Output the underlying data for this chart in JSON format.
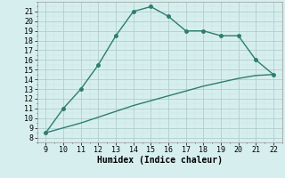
{
  "x_main": [
    9,
    10,
    11,
    12,
    13,
    14,
    15,
    16,
    17,
    18,
    19,
    20,
    21,
    22
  ],
  "y_main": [
    8.5,
    11,
    13,
    15.5,
    18.5,
    21,
    21.5,
    20.5,
    19,
    19,
    18.5,
    18.5,
    16,
    14.5
  ],
  "x_lower": [
    9,
    10,
    11,
    12,
    13,
    14,
    15,
    16,
    17,
    18,
    19,
    20,
    21,
    22
  ],
  "y_lower": [
    8.5,
    9.0,
    9.5,
    10.1,
    10.7,
    11.3,
    11.8,
    12.3,
    12.8,
    13.3,
    13.7,
    14.1,
    14.4,
    14.5
  ],
  "line_color": "#2e7d6e",
  "bg_color": "#d6efee",
  "grid_major_color": "#b0cecd",
  "grid_minor_color": "#c5e2e1",
  "xlabel": "Humidex (Indice chaleur)",
  "xlim": [
    8.5,
    22.5
  ],
  "ylim": [
    7.5,
    22.0
  ],
  "xticks": [
    9,
    10,
    11,
    12,
    13,
    14,
    15,
    16,
    17,
    18,
    19,
    20,
    21,
    22
  ],
  "yticks": [
    8,
    9,
    10,
    11,
    12,
    13,
    14,
    15,
    16,
    17,
    18,
    19,
    20,
    21
  ],
  "tick_fontsize": 6,
  "xlabel_fontsize": 7,
  "line_width": 1.0,
  "marker_size": 2.5
}
